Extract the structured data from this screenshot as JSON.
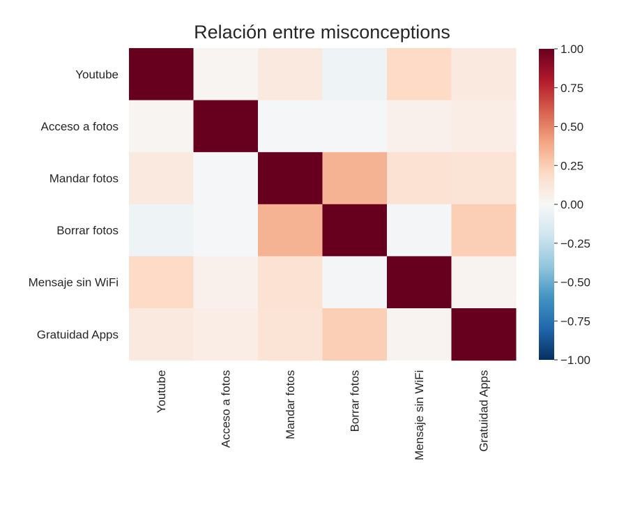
{
  "chart_data": {
    "type": "heatmap",
    "title": "Relación entre misconceptions",
    "xlabel": "",
    "ylabel": "",
    "x_categories": [
      "Youtube",
      "Acceso a fotos",
      "Mandar fotos",
      "Borrar fotos",
      "Mensaje sin WiFi",
      "Gratuidad Apps"
    ],
    "y_categories": [
      "Youtube",
      "Acceso a fotos",
      "Mandar fotos",
      "Borrar fotos",
      "Mensaje sin WiFi",
      "Gratuidad Apps"
    ],
    "values": [
      [
        1.0,
        0.02,
        0.1,
        -0.05,
        0.2,
        0.1
      ],
      [
        0.02,
        1.0,
        -0.01,
        -0.01,
        0.05,
        0.07
      ],
      [
        0.1,
        -0.01,
        1.0,
        0.35,
        0.15,
        0.14
      ],
      [
        -0.05,
        -0.01,
        0.35,
        1.0,
        -0.02,
        0.25
      ],
      [
        0.2,
        0.05,
        0.15,
        -0.02,
        1.0,
        0.03
      ],
      [
        0.1,
        0.07,
        0.14,
        0.25,
        0.03,
        1.0
      ]
    ],
    "vmin": -1.0,
    "vmax": 1.0,
    "colormap": "RdBu_r",
    "colorbar_ticks": [
      1.0,
      0.75,
      0.5,
      0.25,
      0.0,
      -0.25,
      -0.5,
      -0.75,
      -1.0
    ],
    "colorbar_tick_labels": [
      "1.00",
      "0.75",
      "0.50",
      "0.25",
      "0.00",
      "−0.25",
      "−0.50",
      "−0.75",
      "−1.00"
    ],
    "grid": false
  }
}
